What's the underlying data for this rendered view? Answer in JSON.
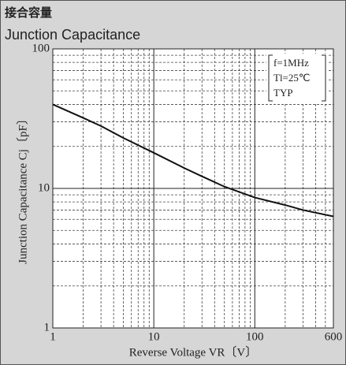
{
  "chart_data": {
    "type": "line",
    "title": "接合容量",
    "subtitle": "Junction Capacitance",
    "xlabel": "Reverse Voltage  VR〔V〕",
    "ylabel": "Junction Capacitance Cj〔pF〕",
    "annotations": [
      "f=1MHz",
      "Tl=25℃",
      "TYP"
    ],
    "xlog": true,
    "ylog": true,
    "xlim": [
      1,
      600
    ],
    "ylim": [
      1,
      100
    ],
    "xticks": [
      1,
      10,
      100,
      600
    ],
    "yticks": [
      1,
      10,
      100
    ],
    "xminor": [
      2,
      3,
      4,
      5,
      6,
      7,
      8,
      9,
      20,
      30,
      40,
      50,
      60,
      70,
      80,
      90,
      200,
      300,
      400,
      500
    ],
    "yminor": [
      2,
      3,
      4,
      5,
      6,
      7,
      8,
      9,
      20,
      30,
      40,
      50,
      60,
      70,
      80,
      90
    ],
    "grid": true,
    "series": [
      {
        "color": "#111111",
        "x": [
          1,
          2,
          3,
          5,
          10,
          20,
          30,
          50,
          100,
          200,
          300,
          600
        ],
        "values": [
          40,
          32,
          28,
          23,
          18,
          14,
          12.2,
          10.3,
          8.6,
          7.6,
          7.0,
          6.3
        ]
      }
    ]
  }
}
